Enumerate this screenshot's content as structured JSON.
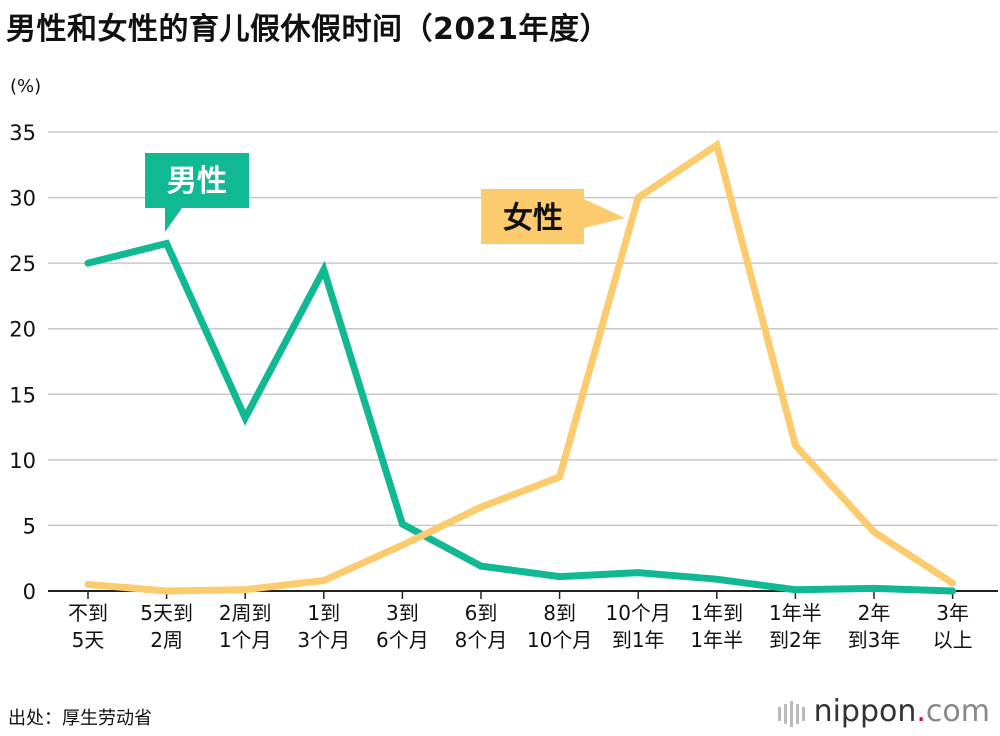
{
  "title": "男性和女性的育儿假休假时间（2021年度）",
  "source": "出处：厚生劳动省",
  "logo": {
    "name": "nippon",
    "dot": ".",
    "tld": "com"
  },
  "colors": {
    "male": "#10b893",
    "female": "#fbcb6e",
    "grid": "#c8c8c8"
  },
  "chart_data": {
    "type": "line",
    "unit_label": "(%)",
    "categories": [
      [
        "不到",
        "5天"
      ],
      [
        "5天到",
        "2周"
      ],
      [
        "2周到",
        "1个月"
      ],
      [
        "1到",
        "3个月"
      ],
      [
        "3到",
        "6个月"
      ],
      [
        "6到",
        "8个月"
      ],
      [
        "8到",
        "10个月"
      ],
      [
        "10个月",
        "到1年"
      ],
      [
        "1年到",
        "1年半"
      ],
      [
        "1年半",
        "到2年"
      ],
      [
        "2年",
        "到3年"
      ],
      [
        "3年",
        "以上"
      ]
    ],
    "ylim": [
      0,
      35
    ],
    "yticks": [
      0,
      5,
      10,
      15,
      20,
      25,
      30,
      35
    ],
    "grid": true,
    "series": [
      {
        "name": "男性",
        "color": "#10b893",
        "values": [
          25.0,
          26.5,
          13.2,
          24.5,
          5.1,
          1.9,
          1.1,
          1.4,
          0.9,
          0.1,
          0.2,
          0.0
        ]
      },
      {
        "name": "女性",
        "color": "#fbcb6e",
        "values": [
          0.5,
          0.0,
          0.1,
          0.8,
          3.5,
          6.4,
          8.7,
          30.0,
          34.0,
          11.1,
          4.5,
          0.6
        ]
      }
    ]
  }
}
